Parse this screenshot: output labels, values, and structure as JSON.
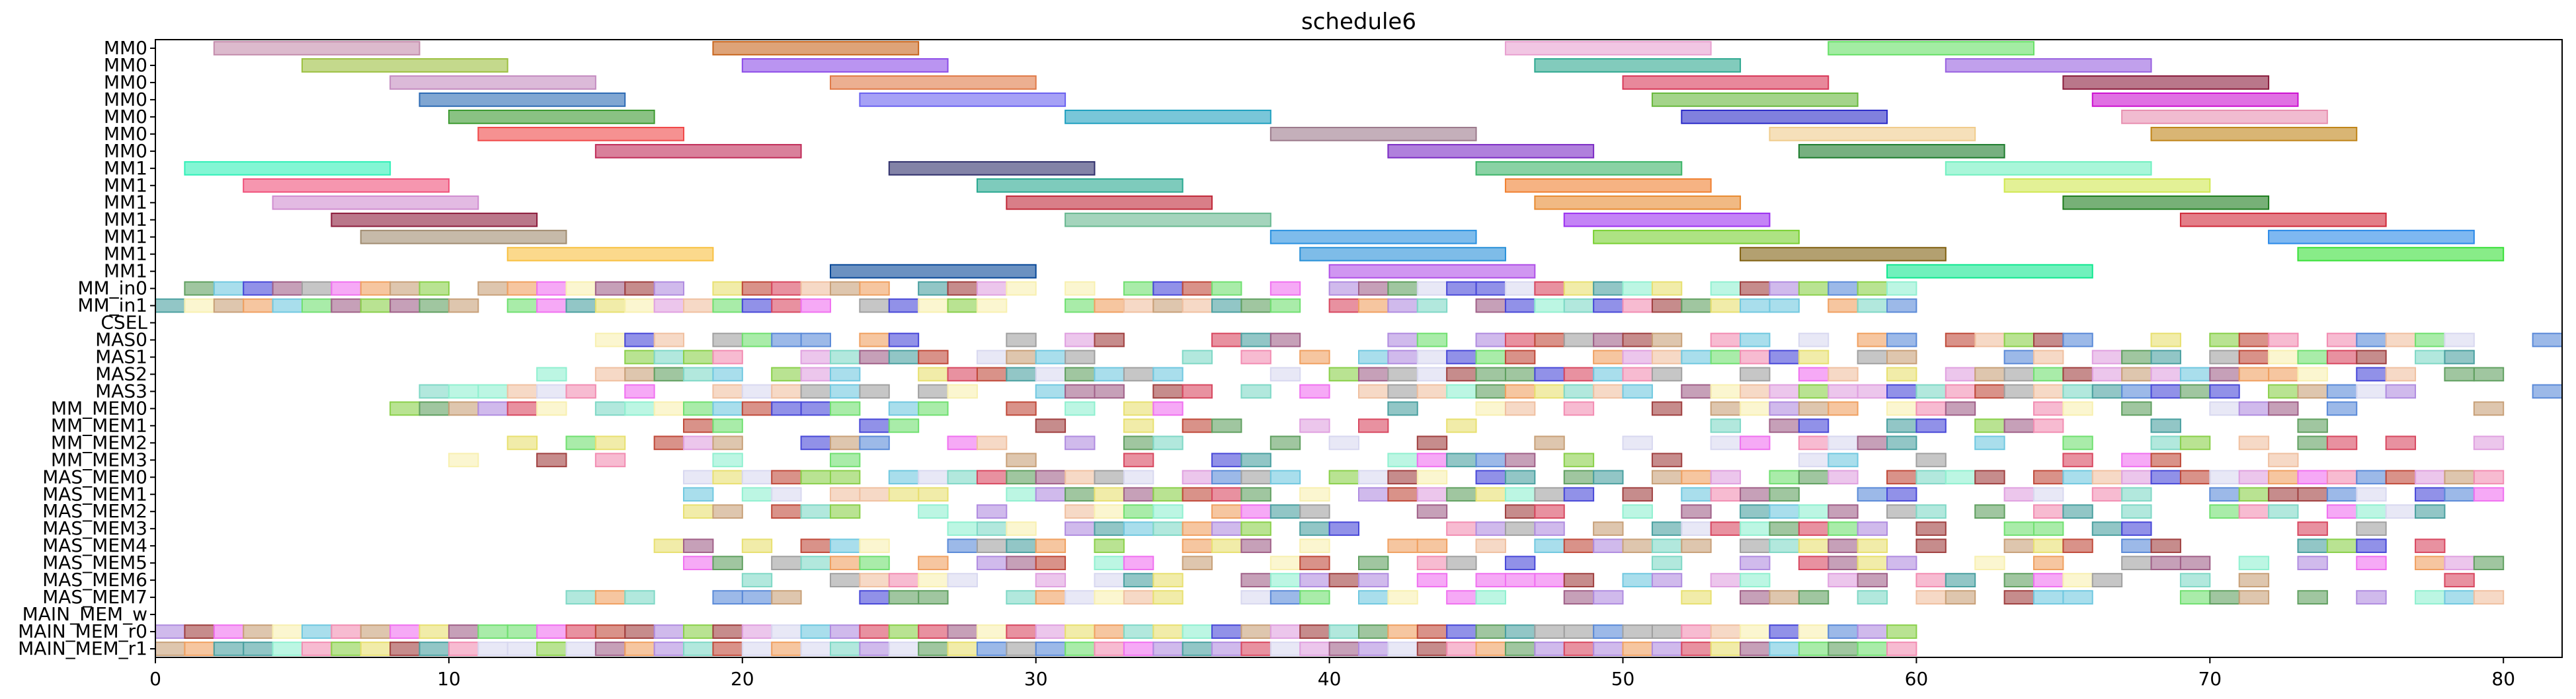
{
  "chart_data": {
    "type": "gantt",
    "title": "schedule6",
    "xlabel": "",
    "ylabel": "",
    "xlim": [
      0,
      82
    ],
    "xticks": [
      0,
      10,
      20,
      30,
      40,
      50,
      60,
      70,
      80
    ],
    "grid": false,
    "rows": [
      "MM0",
      "MM0",
      "MM0",
      "MM0",
      "MM0",
      "MM0",
      "MM0",
      "MM1",
      "MM1",
      "MM1",
      "MM1",
      "MM1",
      "MM1",
      "MM1",
      "MM_in0",
      "MM_in1",
      "CSEL",
      "MAS0",
      "MAS1",
      "MAS2",
      "MAS3",
      "MM_MEM0",
      "MM_MEM1",
      "MM_MEM2",
      "MM_MEM3",
      "MAS_MEM0",
      "MAS_MEM1",
      "MAS_MEM2",
      "MAS_MEM3",
      "MAS_MEM4",
      "MAS_MEM5",
      "MAS_MEM6",
      "MAS_MEM7",
      "MAIN_MEM_w",
      "MAIN_MEM_r0",
      "MAIN_MEM_r1"
    ],
    "row_tasks": [
      [
        [
          2,
          9,
          "#c48cac"
        ],
        [
          19,
          26,
          "#c8661e"
        ],
        [
          46,
          53,
          "#e8a0d0"
        ],
        [
          57,
          64,
          "#66e066"
        ]
      ],
      [
        [
          5,
          12,
          "#9cc040"
        ],
        [
          20,
          27,
          "#8c4ce8"
        ],
        [
          47,
          54,
          "#2ea890"
        ],
        [
          61,
          68,
          "#9860e0"
        ]
      ],
      [
        [
          8,
          15,
          "#c48cc0"
        ],
        [
          23,
          30,
          "#e07a48"
        ],
        [
          50,
          57,
          "#d83858"
        ],
        [
          65,
          72,
          "#8a1c3c"
        ]
      ],
      [
        [
          9,
          16,
          "#2c6ab4"
        ],
        [
          24,
          31,
          "#6a62f0"
        ],
        [
          51,
          58,
          "#68b83c"
        ],
        [
          66,
          73,
          "#cc10d0"
        ]
      ],
      [
        [
          10,
          17,
          "#3c9a30"
        ],
        [
          31,
          38,
          "#20a0c0"
        ],
        [
          52,
          59,
          "#2c2cc8"
        ],
        [
          67,
          74,
          "#e890b0"
        ]
      ],
      [
        [
          11,
          18,
          "#f04848"
        ],
        [
          38,
          45,
          "#9c7a8c"
        ],
        [
          55,
          62,
          "#f0cc8c"
        ],
        [
          68,
          75,
          "#c08418"
        ]
      ],
      [
        [
          15,
          22,
          "#c02c58"
        ],
        [
          42,
          49,
          "#7c2cc4"
        ],
        [
          56,
          63,
          "#1c7c2c"
        ]
      ],
      [
        [
          1,
          8,
          "#30f0b8"
        ],
        [
          25,
          32,
          "#30306c"
        ],
        [
          45,
          52,
          "#3cb468"
        ],
        [
          61,
          68,
          "#70f0c0"
        ]
      ],
      [
        [
          3,
          10,
          "#f0507a"
        ],
        [
          28,
          35,
          "#28a890"
        ],
        [
          46,
          53,
          "#f08030"
        ],
        [
          63,
          70,
          "#d0e850"
        ]
      ],
      [
        [
          4,
          11,
          "#d08cd0"
        ],
        [
          29,
          36,
          "#c02838"
        ],
        [
          47,
          54,
          "#e88a30"
        ],
        [
          65,
          72,
          "#1c7c1c"
        ]
      ],
      [
        [
          6,
          13,
          "#8c1c3c"
        ],
        [
          31,
          38,
          "#68b890"
        ],
        [
          48,
          55,
          "#9c30f0"
        ],
        [
          69,
          76,
          "#d02838"
        ]
      ],
      [
        [
          7,
          14,
          "#a08c70"
        ],
        [
          38,
          45,
          "#2890e0"
        ],
        [
          49,
          56,
          "#78d030"
        ],
        [
          72,
          79,
          "#2888e8"
        ]
      ],
      [
        [
          12,
          19,
          "#f8c040"
        ],
        [
          39,
          46,
          "#2890d8"
        ],
        [
          54,
          61,
          "#806010"
        ],
        [
          73,
          80,
          "#38e038"
        ]
      ],
      [
        [
          23,
          30,
          "#084898"
        ],
        [
          40,
          47,
          "#b050e8"
        ],
        [
          59,
          66,
          "#10e890"
        ]
      ]
    ],
    "packed_rows": [
      {
        "row": 14,
        "start": 1,
        "end": 60,
        "gap": 0.2
      },
      {
        "row": 15,
        "start": 0,
        "end": 60,
        "gap": 0.15
      },
      {
        "row": 17,
        "start": 15,
        "end": 82,
        "gap": 0.3
      },
      {
        "row": 18,
        "start": 16,
        "end": 82,
        "gap": 0.3
      },
      {
        "row": 19,
        "start": 13,
        "end": 80,
        "gap": 0.3
      },
      {
        "row": 20,
        "start": 9,
        "end": 82,
        "gap": 0.25
      },
      {
        "row": 21,
        "start": 8,
        "end": 80,
        "gap": 0.35
      },
      {
        "row": 22,
        "start": 16,
        "end": 76,
        "gap": 0.6
      },
      {
        "row": 23,
        "start": 12,
        "end": 80,
        "gap": 0.5
      },
      {
        "row": 24,
        "start": 8,
        "end": 74,
        "gap": 0.55
      },
      {
        "row": 25,
        "start": 18,
        "end": 80,
        "gap": 0.2
      },
      {
        "row": 26,
        "start": 18,
        "end": 80,
        "gap": 0.25
      },
      {
        "row": 27,
        "start": 18,
        "end": 79,
        "gap": 0.35
      },
      {
        "row": 28,
        "start": 27,
        "end": 78,
        "gap": 0.4
      },
      {
        "row": 29,
        "start": 15,
        "end": 79,
        "gap": 0.45
      },
      {
        "row": 30,
        "start": 18,
        "end": 80,
        "gap": 0.35
      },
      {
        "row": 31,
        "start": 14,
        "end": 79,
        "gap": 0.35
      },
      {
        "row": 32,
        "start": 14,
        "end": 80,
        "gap": 0.35
      },
      {
        "row": 34,
        "start": 0,
        "end": 60,
        "gap": 0
      },
      {
        "row": 35,
        "start": 0,
        "end": 60,
        "gap": 0
      }
    ],
    "palette": [
      "#f28db2",
      "#7fd8c6",
      "#c04a3a",
      "#f0a060",
      "#8ad04a",
      "#b08ce0",
      "#e8e070",
      "#5a8ad8",
      "#d84860",
      "#70c8e0",
      "#a0a0a0",
      "#f070f0",
      "#60a060",
      "#f0c0a0",
      "#4848d8",
      "#c8a078",
      "#90f0d0",
      "#e0a0e0",
      "#a04040",
      "#70e070",
      "#f8f0b0",
      "#4aa0a0",
      "#d8d8f0",
      "#a06088"
    ],
    "row_count": 36,
    "task_alpha": 0.6
  }
}
